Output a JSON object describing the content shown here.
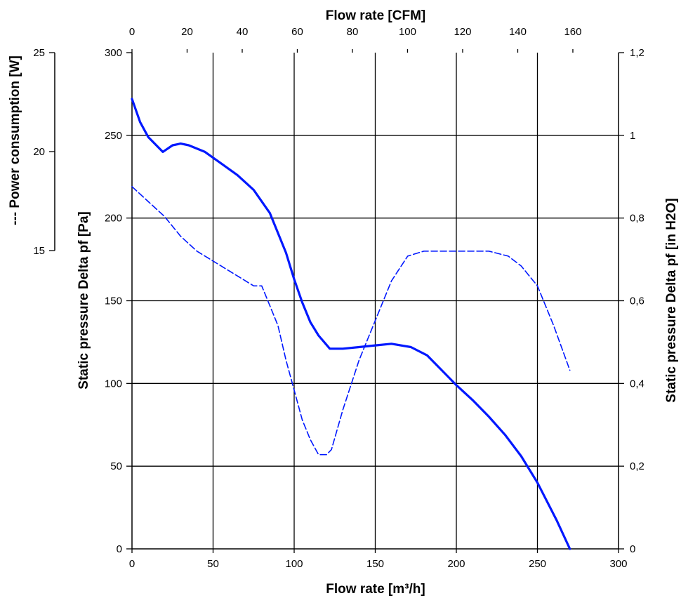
{
  "chart_data": {
    "type": "line",
    "x_bottom": {
      "label": "Flow rate [m³/h]",
      "range": [
        0,
        300
      ],
      "ticks": [
        "0",
        "50",
        "100",
        "150",
        "200",
        "250",
        "300"
      ]
    },
    "x_top": {
      "label": "Flow rate [CFM]",
      "range": [
        0,
        176.57
      ],
      "ticks": [
        "0",
        "20",
        "40",
        "60",
        "80",
        "100",
        "120",
        "140",
        "160"
      ]
    },
    "y_left": {
      "label": "Static pressure Delta pf [Pa]",
      "range": [
        0,
        300
      ],
      "ticks": [
        "0",
        "50",
        "100",
        "150",
        "200",
        "250",
        "300"
      ]
    },
    "y_right": {
      "label": "Static pressure Delta pf [in H2O]",
      "range": [
        0,
        1.2
      ],
      "ticks": [
        "0",
        "0,2",
        "0,4",
        "0,6",
        "0,8",
        "1",
        "1,2"
      ]
    },
    "y_power": {
      "label": "--- Power consumption [W]",
      "range": [
        15,
        25
      ],
      "ticks": [
        "15",
        "20",
        "25"
      ]
    },
    "grid": true,
    "series": [
      {
        "axis": "pressure",
        "color": "#0018ff",
        "style": "solid",
        "x": [
          0,
          5,
          10,
          19,
          25,
          30,
          35,
          45,
          55,
          65,
          75,
          85,
          95,
          100,
          105,
          110,
          115,
          122,
          130,
          140,
          150,
          160,
          172,
          182,
          190,
          200,
          210,
          220,
          230,
          240,
          250,
          262,
          270
        ],
        "y": [
          272,
          258,
          249,
          240,
          244,
          245,
          244,
          240,
          233,
          226,
          217,
          203,
          179,
          163,
          149,
          137,
          129,
          121,
          121,
          122,
          123,
          124,
          122,
          117,
          109,
          99,
          90,
          80,
          69,
          56,
          40,
          17,
          0
        ]
      },
      {
        "axis": "power",
        "color": "#0018ff",
        "style": "dashed",
        "x": [
          0,
          10,
          20,
          30,
          40,
          50,
          60,
          70,
          75,
          80,
          85,
          90,
          95,
          100,
          105,
          110,
          115,
          120,
          123,
          130,
          140,
          150,
          160,
          170,
          180,
          190,
          200,
          210,
          220,
          232,
          240,
          250,
          260,
          270
        ],
        "y": [
          22.3,
          22.0,
          21.7,
          21.3,
          21.0,
          20.8,
          20.6,
          20.4,
          20.3,
          20.3,
          19.9,
          19.5,
          18.8,
          18.2,
          17.6,
          17.2,
          16.9,
          16.9,
          17.0,
          17.8,
          18.8,
          19.6,
          20.4,
          20.9,
          21.0,
          21.0,
          21.0,
          21.0,
          21.0,
          20.9,
          20.7,
          20.3,
          19.5,
          18.6
        ]
      }
    ]
  }
}
